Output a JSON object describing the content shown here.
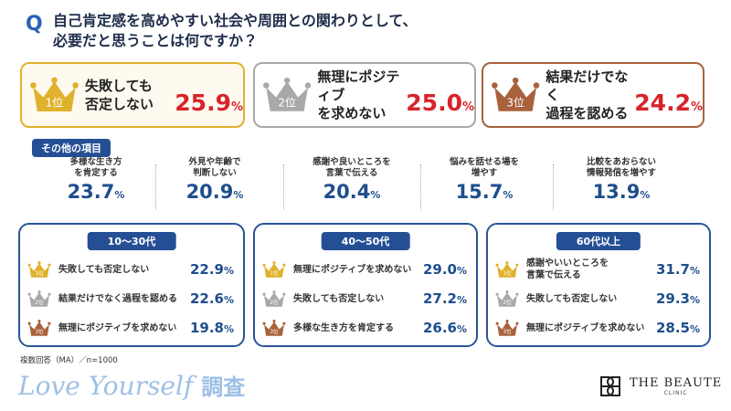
{
  "question": {
    "mark": "Q",
    "lines": [
      "自己肯定感を高めやすい社会や周囲との関わりとして、",
      "必要だと思うことは何ですか？"
    ]
  },
  "unit": "%",
  "top3": [
    {
      "rank": "1位",
      "label_lines": [
        "失敗しても",
        "否定しない"
      ],
      "value": "25.9"
    },
    {
      "rank": "2位",
      "label_lines": [
        "無理にポジティブ",
        "を求めない"
      ],
      "value": "25.0"
    },
    {
      "rank": "3位",
      "label_lines": [
        "結果だけでなく",
        "過程を認める"
      ],
      "value": "24.2"
    }
  ],
  "others": {
    "title": "その他の項目",
    "items": [
      {
        "label_lines": [
          "多様な生き方",
          "を肯定する"
        ],
        "value": "23.7"
      },
      {
        "label_lines": [
          "外見や年齢で",
          "判断しない"
        ],
        "value": "20.9"
      },
      {
        "label_lines": [
          "感謝や良いところを",
          "言葉で伝える"
        ],
        "value": "20.4"
      },
      {
        "label_lines": [
          "悩みを話せる場を",
          "増やす"
        ],
        "value": "15.7"
      },
      {
        "label_lines": [
          "比較をあおらない",
          "情報発信を増やす"
        ],
        "value": "13.9"
      }
    ]
  },
  "age_groups": [
    {
      "title": "10～30代",
      "items": [
        {
          "rank": "1位",
          "label_lines": [
            "失敗しても否定しない"
          ],
          "value": "22.9"
        },
        {
          "rank": "2位",
          "label_lines": [
            "結果だけでなく過程を認める"
          ],
          "value": "22.6"
        },
        {
          "rank": "3位",
          "label_lines": [
            "無理にポジティブを求めない"
          ],
          "value": "19.8"
        }
      ]
    },
    {
      "title": "40～50代",
      "items": [
        {
          "rank": "1位",
          "label_lines": [
            "無理にポジティブを求めない"
          ],
          "value": "29.0"
        },
        {
          "rank": "2位",
          "label_lines": [
            "失敗しても否定しない"
          ],
          "value": "27.2"
        },
        {
          "rank": "3位",
          "label_lines": [
            "多様な生き方を肯定する"
          ],
          "value": "26.6"
        }
      ]
    },
    {
      "title": "60代以上",
      "items": [
        {
          "rank": "1位",
          "label_lines": [
            "感謝やいいところを",
            "言葉で伝える"
          ],
          "value": "31.7"
        },
        {
          "rank": "2位",
          "label_lines": [
            "失敗しても否定しない"
          ],
          "value": "29.3"
        },
        {
          "rank": "3位",
          "label_lines": [
            "無理にポジティブを求めない"
          ],
          "value": "28.5"
        }
      ]
    }
  ],
  "footnote": "複数回答（MA）／n=1000",
  "brand": {
    "title": "Love Yourself",
    "suffix": "調査"
  },
  "logo": {
    "name": "THE BEAUTE",
    "sub": "CLINIC"
  }
}
